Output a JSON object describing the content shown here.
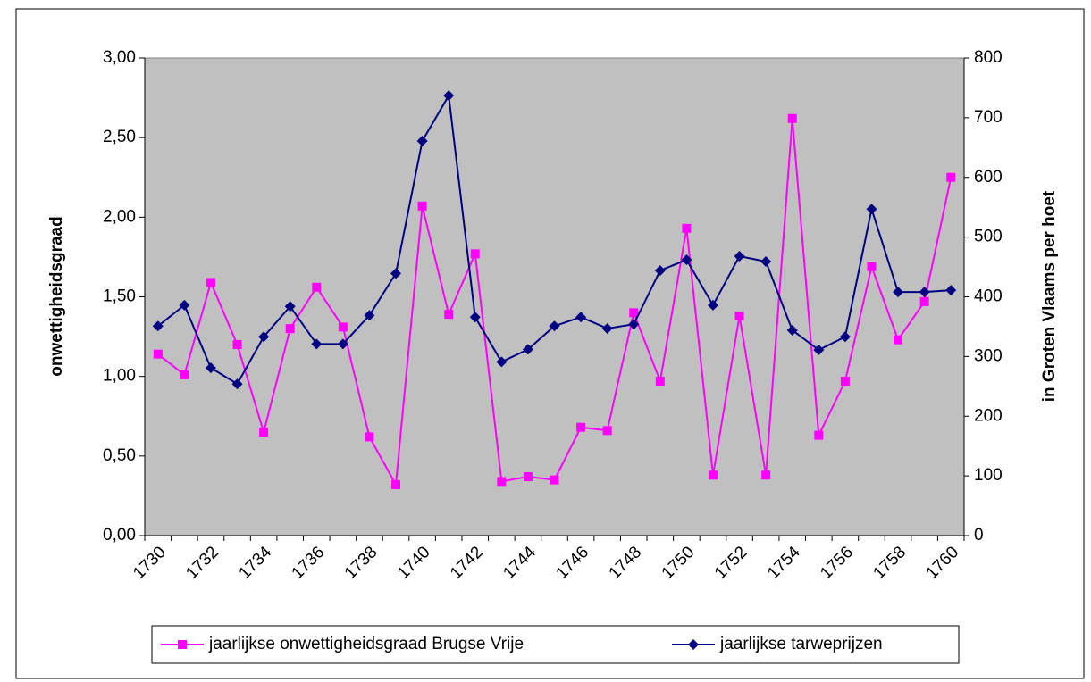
{
  "chart_data": {
    "type": "line",
    "categories": [
      "1730",
      null,
      "1732",
      null,
      "1734",
      null,
      "1736",
      null,
      "1738",
      null,
      "1740",
      null,
      "1742",
      null,
      "1744",
      null,
      "1746",
      null,
      "1748",
      null,
      "1750",
      null,
      "1752",
      null,
      "1754",
      null,
      "1756",
      null,
      "1758",
      null,
      "1760"
    ],
    "y_label": "onwettigheidsgraad",
    "y2_label": "in Groten Vlaams per hoet",
    "ylim": [
      0,
      3
    ],
    "yticks": [
      {
        "value": 0,
        "label": "0,00"
      },
      {
        "value": 0.5,
        "label": "0,50"
      },
      {
        "value": 1,
        "label": "1,00"
      },
      {
        "value": 1.5,
        "label": "1,50"
      },
      {
        "value": 2,
        "label": "2,00"
      },
      {
        "value": 2.5,
        "label": "2,50"
      },
      {
        "value": 3,
        "label": "3,00"
      }
    ],
    "y2lim": [
      0,
      800
    ],
    "y2ticks": [
      0,
      100,
      200,
      300,
      400,
      500,
      600,
      700,
      800
    ],
    "legend": "bottom",
    "series": [
      {
        "name": "jaarlijkse onwettigheidsgraad Brugse Vrije",
        "color": "#ff00ff",
        "marker": "square",
        "values": [
          1.14,
          1.01,
          1.59,
          1.2,
          0.65,
          1.3,
          1.56,
          1.31,
          0.62,
          0.32,
          2.07,
          1.39,
          1.77,
          0.34,
          0.37,
          0.35,
          0.68,
          0.66,
          1.4,
          0.97,
          1.93,
          0.38,
          1.38,
          0.38,
          2.62,
          0.63,
          0.97,
          1.69,
          1.23,
          1.47,
          2.25
        ]
      },
      {
        "name": "jaarlijkse tarweprijzen",
        "color": "#000080",
        "marker": "diamond",
        "axis": "y2",
        "values": [
          351,
          386,
          281,
          254,
          333,
          384,
          321,
          321,
          369,
          439,
          661,
          737,
          366,
          291,
          312,
          351,
          366,
          347,
          354,
          444,
          462,
          386,
          468,
          459,
          344,
          311,
          333,
          547,
          408,
          408,
          411
        ]
      }
    ]
  }
}
